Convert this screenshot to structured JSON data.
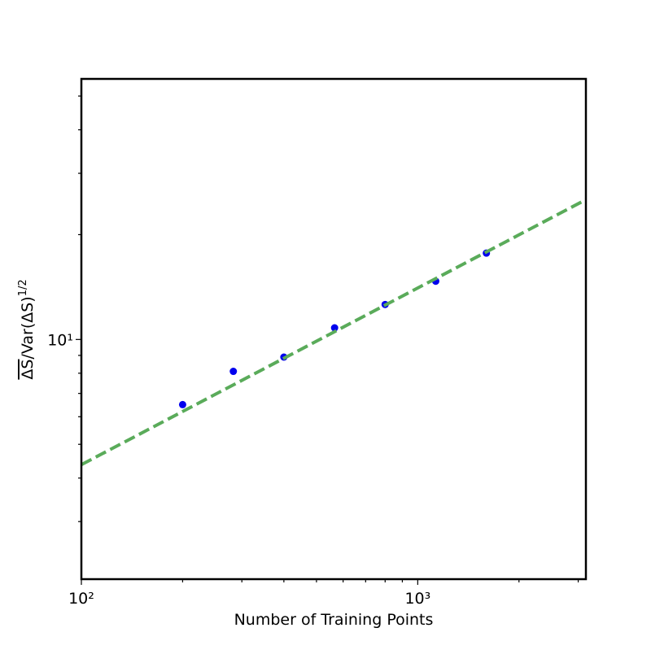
{
  "chart_data": {
    "type": "scatter",
    "xlabel": "Number of Training Points",
    "ylabel": {
      "main": "ΔS",
      "rest": "/Var(ΔS)",
      "exponent": "1/2"
    },
    "xscale": "log",
    "yscale": "log",
    "xlim": [
      100,
      3162
    ],
    "ylim": [
      2.05,
      56
    ],
    "xticks": [
      {
        "value": 100,
        "label": "10²"
      },
      {
        "value": 1000,
        "label": "10³"
      }
    ],
    "yticks": [
      {
        "value": 10,
        "label": "10¹"
      }
    ],
    "xminor": [
      200,
      300,
      400,
      500,
      600,
      700,
      800,
      900,
      2000,
      3000
    ],
    "yminor": [
      3,
      4,
      5,
      6,
      7,
      8,
      9,
      20,
      30,
      40,
      50
    ],
    "series": [
      {
        "kind": "points",
        "color": "#0000ee",
        "x": [
          200,
          283,
          400,
          566,
          800,
          1131,
          1600
        ],
        "values": [
          6.5,
          8.1,
          8.9,
          10.8,
          12.6,
          14.7,
          17.7
        ]
      },
      {
        "kind": "dashed-line",
        "color": "#5aab5a",
        "x": [
          100,
          3162
        ],
        "values": [
          4.37,
          25.2
        ]
      }
    ]
  }
}
